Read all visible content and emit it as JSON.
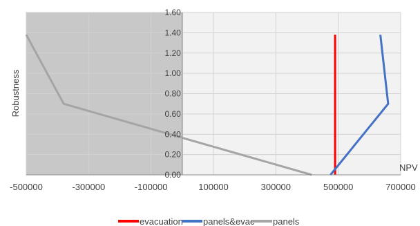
{
  "chart_data": {
    "type": "line",
    "title": "",
    "xlabel": "NPV",
    "ylabel": "Robustness",
    "xlim": [
      -500000,
      700000
    ],
    "ylim": [
      0,
      1.6
    ],
    "x_ticks": [
      -500000,
      -300000,
      -100000,
      100000,
      300000,
      500000,
      700000
    ],
    "x_tick_labels": [
      "-500000",
      "-300000",
      "-100000",
      "100000",
      "300000",
      "500000",
      "700000"
    ],
    "y_ticks": [
      0,
      0.2,
      0.4,
      0.6,
      0.8,
      1.0,
      1.2,
      1.4,
      1.6
    ],
    "y_tick_labels": [
      "0.00",
      "0.20",
      "0.40",
      "0.60",
      "0.80",
      "1.00",
      "1.20",
      "1.40",
      "1.60"
    ],
    "grid": true,
    "shaded_region": {
      "x_from": -500000,
      "x_to": 0
    },
    "legend_position": "bottom",
    "series": [
      {
        "name": "evacuation",
        "color": "#ff0000",
        "points": [
          [
            490000,
            0
          ],
          [
            490000,
            1.38
          ]
        ]
      },
      {
        "name": "panels&evac",
        "color": "#4472c4",
        "points": [
          [
            475000,
            0
          ],
          [
            660000,
            0.7
          ],
          [
            635000,
            1.38
          ]
        ]
      },
      {
        "name": "panels",
        "color": "#a5a5a5",
        "points": [
          [
            -500000,
            1.38
          ],
          [
            -380000,
            0.7
          ],
          [
            415000,
            0
          ]
        ]
      }
    ]
  }
}
